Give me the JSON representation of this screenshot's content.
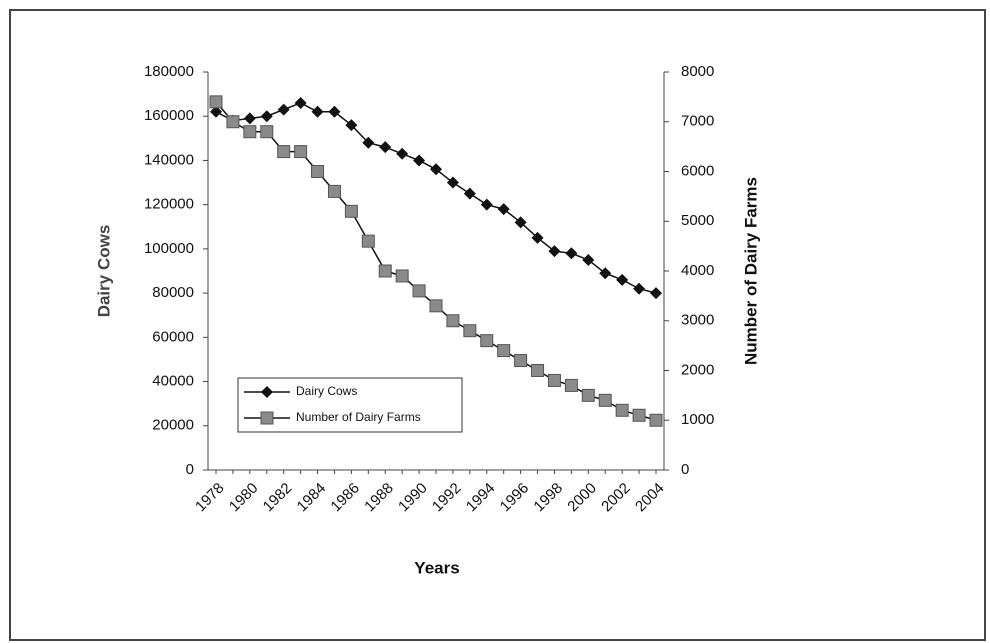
{
  "chart_data": {
    "type": "line",
    "categories": [
      "1978",
      null,
      "1980",
      null,
      "1982",
      null,
      "1984",
      null,
      "1986",
      null,
      "1988",
      null,
      "1990",
      null,
      "1992",
      null,
      "1994",
      null,
      "1996",
      null,
      "1998",
      null,
      "2000",
      null,
      "2002",
      null,
      "2004"
    ],
    "x_label": "Years",
    "y_label": "Dairy Cows",
    "y2_label": "Number of Dairy Farms",
    "ylim": [
      0,
      180000
    ],
    "yticks": [
      0,
      20000,
      40000,
      60000,
      80000,
      100000,
      120000,
      140000,
      160000,
      180000
    ],
    "y2lim": [
      0,
      8000
    ],
    "y2ticks": [
      0,
      1000,
      2000,
      3000,
      4000,
      5000,
      6000,
      7000,
      8000
    ],
    "series": [
      {
        "name": "Dairy Cows",
        "color": "#111111",
        "marker": "diamond",
        "values": [
          162000,
          158000,
          159000,
          160000,
          163000,
          166000,
          162000,
          162000,
          156000,
          148000,
          146000,
          143000,
          140000,
          136000,
          130000,
          125000,
          120000,
          118000,
          112000,
          105000,
          99000,
          98000,
          95000,
          89000,
          86000,
          82000,
          80000
        ]
      },
      {
        "name": "Number of Dairy Farms",
        "color": "#111111",
        "marker": "square",
        "axis": "y2",
        "values": [
          7400,
          7000,
          6800,
          6800,
          6400,
          6400,
          6000,
          5600,
          5200,
          4600,
          4000,
          3900,
          3600,
          3300,
          3000,
          2800,
          2600,
          2400,
          2200,
          2000,
          1800,
          1700,
          1500,
          1400,
          1200,
          1100,
          1000
        ]
      }
    ]
  }
}
